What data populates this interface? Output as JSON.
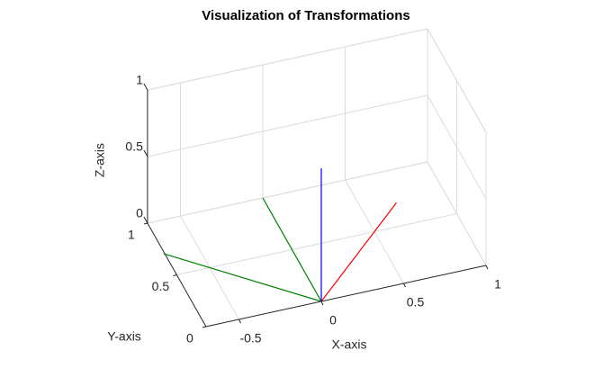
{
  "chart_data": {
    "type": "line3d",
    "title": "Visualization of Transformations",
    "xlabel": "X-axis",
    "ylabel": "Y-axis",
    "zlabel": "Z-axis",
    "xlim": [
      -0.7,
      1
    ],
    "ylim": [
      0,
      1
    ],
    "zlim": [
      0,
      1
    ],
    "xticks": [
      -0.5,
      0,
      0.5,
      1
    ],
    "yticks": [
      0,
      0.5,
      1
    ],
    "zticks": [
      0,
      0.5,
      1
    ],
    "grid": true,
    "series": [
      {
        "color": "#008000",
        "x": [
          0,
          0
        ],
        "y": [
          0,
          1
        ],
        "z": [
          0,
          0
        ]
      },
      {
        "color": "#ff0000",
        "x": [
          0,
          0.7071
        ],
        "y": [
          0,
          0.7071
        ],
        "z": [
          0,
          0
        ]
      },
      {
        "color": "#008000",
        "x": [
          0,
          -0.7071
        ],
        "y": [
          0,
          0.7071
        ],
        "z": [
          0,
          0
        ]
      },
      {
        "color": "#0000ff",
        "x": [
          0,
          0
        ],
        "y": [
          0,
          0
        ],
        "z": [
          0,
          1
        ]
      }
    ]
  }
}
